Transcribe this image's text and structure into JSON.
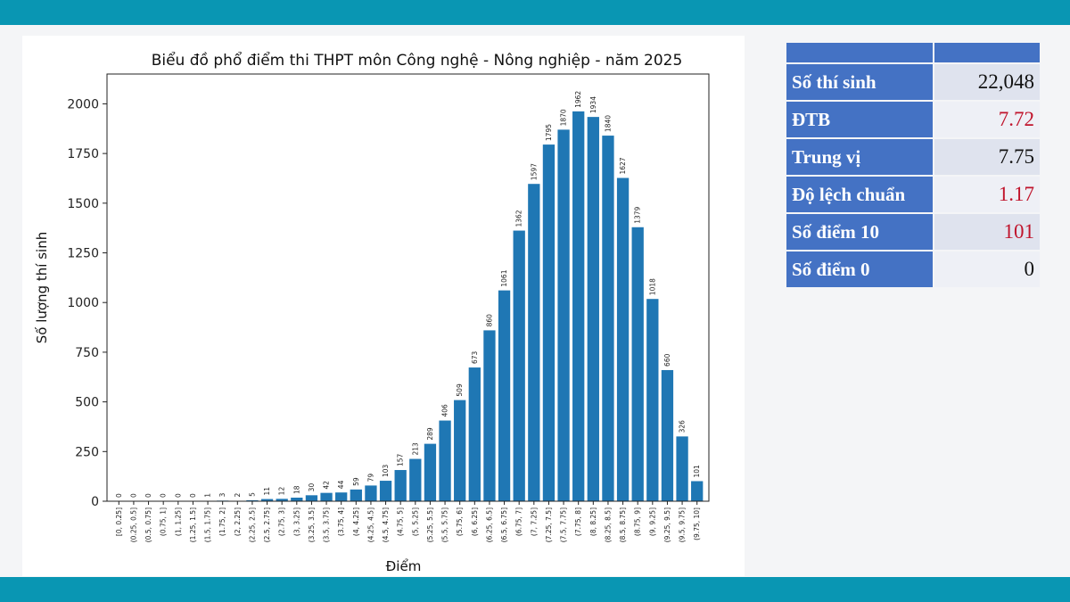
{
  "chart_data": {
    "type": "bar",
    "title": "Biểu đồ phổ điểm thi THPT môn Công nghệ - Nông nghiệp - năm 2025",
    "xlabel": "Điểm",
    "ylabel": "Số lượng thí sinh",
    "ylim": [
      0,
      2150
    ],
    "yticks": [
      0,
      250,
      500,
      750,
      1000,
      1250,
      1500,
      1750,
      2000
    ],
    "bar_color": "#1f77b4",
    "categories": [
      "[0, 0.25]",
      "(0.25, 0.5]",
      "(0.5, 0.75]",
      "(0.75, 1]",
      "(1, 1.25]",
      "(1.25, 1.5]",
      "(1.5, 1.75]",
      "(1.75, 2]",
      "(2, 2.25]",
      "(2.25, 2.5]",
      "(2.5, 2.75]",
      "(2.75, 3]",
      "(3, 3.25]",
      "(3.25, 3.5]",
      "(3.5, 3.75]",
      "(3.75, 4]",
      "(4, 4.25]",
      "(4.25, 4.5]",
      "(4.5, 4.75]",
      "(4.75, 5]",
      "(5, 5.25]",
      "(5.25, 5.5]",
      "(5.5, 5.75]",
      "(5.75, 6]",
      "(6, 6.25]",
      "(6.25, 6.5]",
      "(6.5, 6.75]",
      "(6.75, 7]",
      "(7, 7.25]",
      "(7.25, 7.5]",
      "(7.5, 7.75]",
      "(7.75, 8]",
      "(8, 8.25]",
      "(8.25, 8.5]",
      "(8.5, 8.75]",
      "(8.75, 9]",
      "(9, 9.25]",
      "(9.25, 9.5]",
      "(9.5, 9.75]",
      "(9.75, 10]"
    ],
    "values": [
      0,
      0,
      0,
      0,
      0,
      0,
      1,
      3,
      2,
      5,
      11,
      12,
      18,
      30,
      42,
      44,
      59,
      79,
      103,
      157,
      213,
      289,
      406,
      509,
      673,
      860,
      1061,
      1362,
      1597,
      1795,
      1870,
      1962,
      1934,
      1840,
      1627,
      1379,
      1018,
      660,
      326,
      101
    ]
  },
  "stats": {
    "rows": [
      {
        "label": "Số thí sinh",
        "value": "22,048",
        "color": "#111111"
      },
      {
        "label": "ĐTB",
        "value": "7.72",
        "color": "#c0142c"
      },
      {
        "label": "Trung vị",
        "value": "7.75",
        "color": "#111111"
      },
      {
        "label": "Độ lệch chuẩn",
        "value": "1.17",
        "color": "#c0142c"
      },
      {
        "label": "Số điểm 10",
        "value": "101",
        "color": "#c0142c"
      },
      {
        "label": "Số điểm 0",
        "value": "0",
        "color": "#111111"
      }
    ]
  },
  "colors": {
    "band": "#0996b3",
    "header": "#4472c4"
  }
}
